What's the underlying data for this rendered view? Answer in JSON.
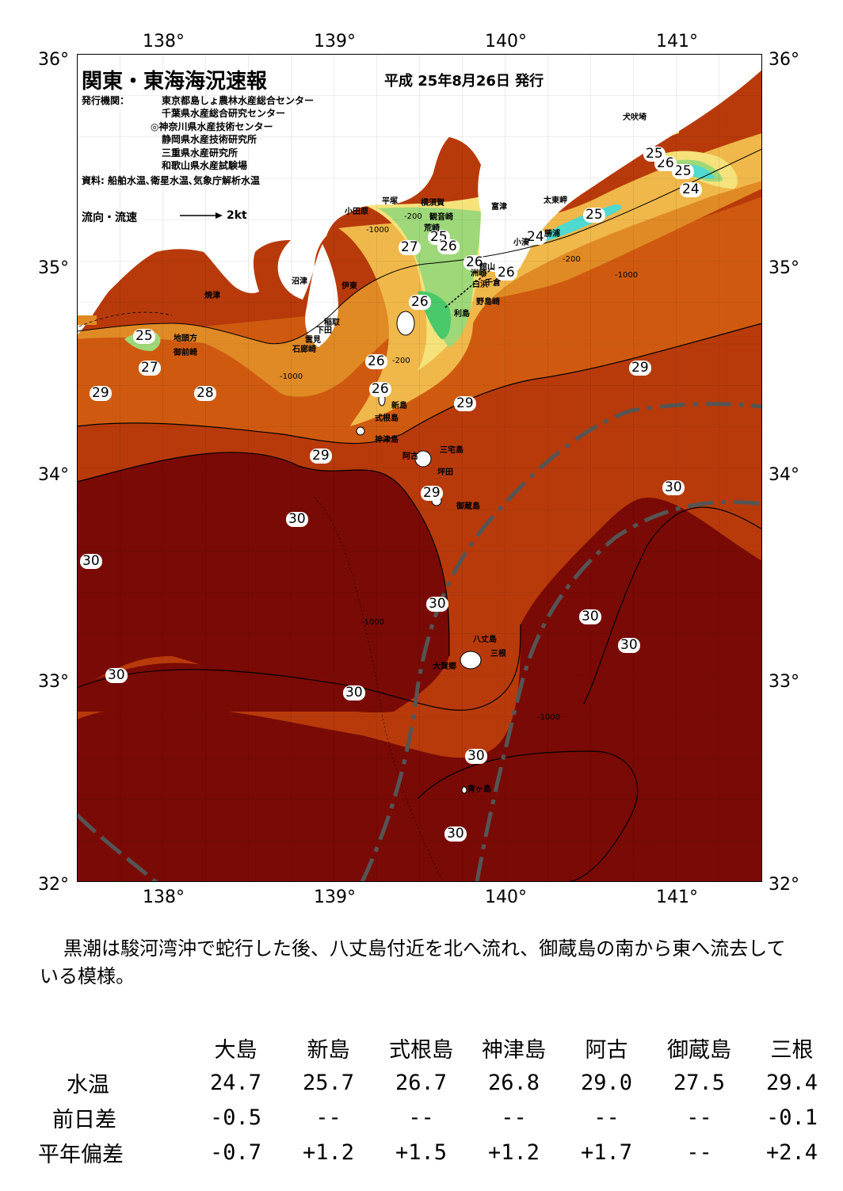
{
  "header": {
    "title": "関東・東海海況速報",
    "date": "平成 25年8月26日 発行",
    "publisher_label": "発行機関：",
    "publishers": [
      "東京都島しょ農林水産総合センター",
      "千葉県水産総合研究センター",
      "◎神奈川県水産技術センター",
      "静岡県水産技術研究所",
      "三重県水産研究所",
      "和歌山県水産試験場"
    ],
    "source": "資料: 船舶水温､衛星水温､気象庁解析水温",
    "legend": "流向・流速",
    "legend_scale": "2kt"
  },
  "axes": {
    "lon_top": [
      "138°",
      "139°",
      "140°",
      "141°"
    ],
    "lon_bottom": [
      "138°",
      "139°",
      "140°",
      "141°"
    ],
    "lat_left": [
      "36°",
      "35°",
      "34°",
      "33°",
      "32°"
    ],
    "lat_right": [
      "36°",
      "35°",
      "34°",
      "33°",
      "32°"
    ]
  },
  "isotherms": [
    "24",
    "25",
    "26",
    "25",
    "24",
    "26",
    "27",
    "25",
    "26",
    "25",
    "26",
    "26",
    "25",
    "27",
    "29",
    "28",
    "26",
    "26",
    "29",
    "29",
    "29",
    "29",
    "30",
    "30",
    "30",
    "30",
    "30",
    "30",
    "30",
    "30",
    "30",
    "30"
  ],
  "places": [
    "犬吠埼",
    "太東岬",
    "勝浦",
    "小湊",
    "富津",
    "横須賀",
    "観音崎",
    "荒崎",
    "平塚",
    "小田原",
    "洲崎",
    "白浜",
    "千倉",
    "野島崎",
    "館山",
    "沼津",
    "伊東",
    "焼津",
    "稲取",
    "下田",
    "雲見",
    "石廊崎",
    "地頭方",
    "御前崎",
    "新島",
    "式根島",
    "神津島",
    "三宅島",
    "阿古",
    "坪田",
    "御蔵島",
    "八丈島",
    "三根",
    "大賀郷",
    "青ヶ島",
    "利島"
  ],
  "depth_labels": [
    "-200",
    "-1000"
  ],
  "summary": "黒潮は駿河湾沖で蛇行した後、八丈島付近を北へ流れ、御蔵島の南から東へ流去している模様。",
  "table": {
    "columns": [
      "大島",
      "新島",
      "式根島",
      "神津島",
      "阿古",
      "御蔵島",
      "三根"
    ],
    "rows": [
      {
        "label": "水温",
        "values": [
          "24.7",
          "25.7",
          "26.7",
          "26.8",
          "29.0",
          "27.5",
          "29.4"
        ]
      },
      {
        "label": "前日差",
        "values": [
          "-0.5",
          "--",
          "--",
          "--",
          "--",
          "--",
          "-0.1"
        ]
      },
      {
        "label": "平年偏差",
        "values": [
          "-0.7",
          "+1.2",
          "+1.5",
          "+1.2",
          "+1.7",
          "--",
          "+2.4"
        ]
      }
    ]
  },
  "colors": {
    "c30": "#7a0a05",
    "c29": "#b83a0a",
    "c28": "#cf5a0f",
    "c27": "#e08a25",
    "c26": "#f0b84a",
    "c25": "#f6e27a",
    "c24": "#9ed879",
    "c23": "#49c96a",
    "c22": "#4fd9cf",
    "land": "#ffffff",
    "kuroshio": "#555555"
  }
}
